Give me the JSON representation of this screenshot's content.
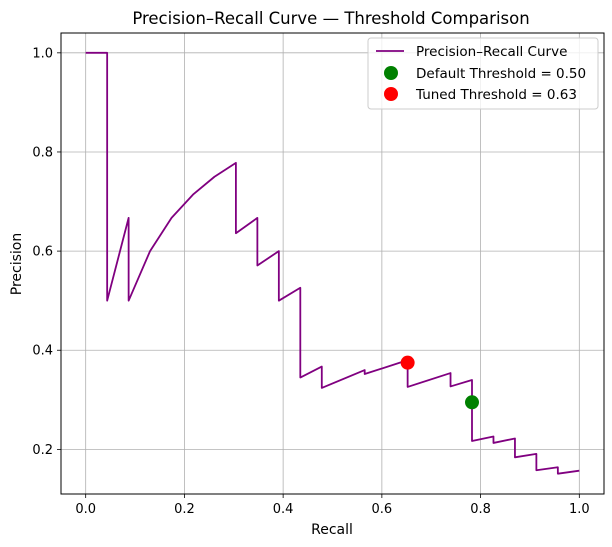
{
  "chart_data": {
    "type": "line",
    "title": "Precision–Recall Curve — Threshold Comparison",
    "xlabel": "Recall",
    "ylabel": "Precision",
    "xlim": [
      -0.05,
      1.05
    ],
    "ylim": [
      0.11,
      1.04
    ],
    "xticks": [
      0.0,
      0.2,
      0.4,
      0.6,
      0.8,
      1.0
    ],
    "xtick_labels": [
      "0.0",
      "0.2",
      "0.4",
      "0.6",
      "0.8",
      "1.0"
    ],
    "yticks": [
      0.2,
      0.4,
      0.6,
      0.8,
      1.0
    ],
    "ytick_labels": [
      "0.2",
      "0.4",
      "0.6",
      "0.8",
      "1.0"
    ],
    "grid": true,
    "legend_position": "top-right",
    "series": [
      {
        "name": "Precision–Recall Curve",
        "kind": "line",
        "color": "#800080",
        "points": [
          [
            0.0,
            1.0
          ],
          [
            0.0435,
            1.0
          ],
          [
            0.0435,
            0.5
          ],
          [
            0.087,
            0.667
          ],
          [
            0.087,
            0.5
          ],
          [
            0.1304,
            0.6
          ],
          [
            0.1739,
            0.667
          ],
          [
            0.2174,
            0.714
          ],
          [
            0.2609,
            0.75
          ],
          [
            0.3043,
            0.778
          ],
          [
            0.3043,
            0.636
          ],
          [
            0.3478,
            0.667
          ],
          [
            0.3478,
            0.571
          ],
          [
            0.3913,
            0.6
          ],
          [
            0.3913,
            0.5
          ],
          [
            0.4348,
            0.526
          ],
          [
            0.4348,
            0.345
          ],
          [
            0.4783,
            0.367
          ],
          [
            0.4783,
            0.324
          ],
          [
            0.5652,
            0.36
          ],
          [
            0.5652,
            0.352
          ],
          [
            0.6522,
            0.38
          ],
          [
            0.6522,
            0.375
          ],
          [
            0.6522,
            0.326
          ],
          [
            0.7391,
            0.354
          ],
          [
            0.7391,
            0.327
          ],
          [
            0.7826,
            0.34
          ],
          [
            0.7826,
            0.217
          ],
          [
            0.8261,
            0.226
          ],
          [
            0.8261,
            0.213
          ],
          [
            0.8696,
            0.222
          ],
          [
            0.8696,
            0.184
          ],
          [
            0.913,
            0.191
          ],
          [
            0.913,
            0.158
          ],
          [
            0.9565,
            0.164
          ],
          [
            0.9565,
            0.151
          ],
          [
            1.0,
            0.157
          ]
        ]
      },
      {
        "name": "Default Threshold = 0.50",
        "kind": "point",
        "color": "#008000",
        "points": [
          [
            0.7826,
            0.295
          ]
        ]
      },
      {
        "name": "Tuned Threshold = 0.63",
        "kind": "point",
        "color": "#ff0000",
        "points": [
          [
            0.6522,
            0.375
          ]
        ]
      }
    ]
  }
}
